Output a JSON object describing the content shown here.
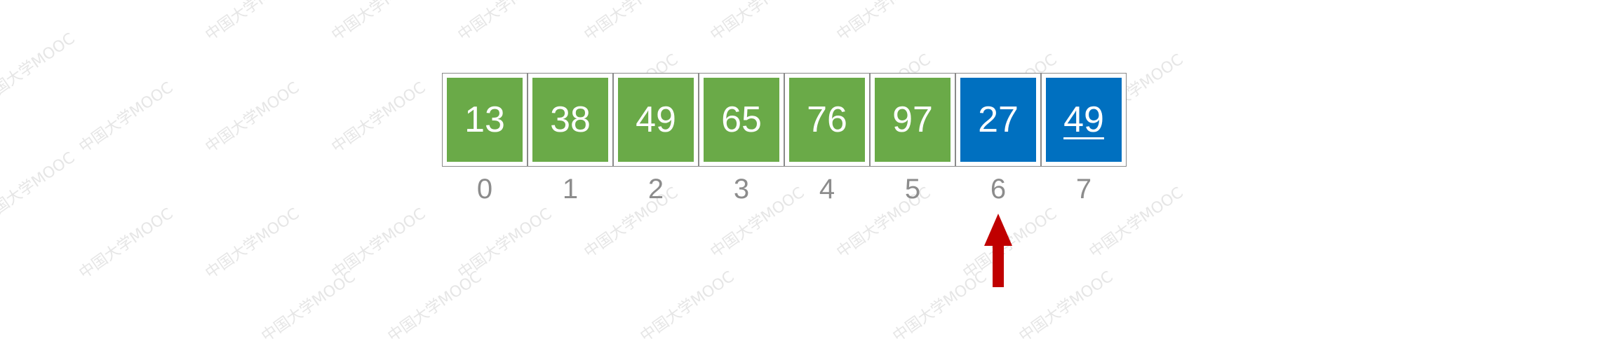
{
  "watermark_text": "中国大学MOOC",
  "array": {
    "cells": [
      {
        "value": "13",
        "state": "sorted",
        "underlined": false
      },
      {
        "value": "38",
        "state": "sorted",
        "underlined": false
      },
      {
        "value": "49",
        "state": "sorted",
        "underlined": false
      },
      {
        "value": "65",
        "state": "sorted",
        "underlined": false
      },
      {
        "value": "76",
        "state": "sorted",
        "underlined": false
      },
      {
        "value": "97",
        "state": "sorted",
        "underlined": false
      },
      {
        "value": "27",
        "state": "unsorted",
        "underlined": false
      },
      {
        "value": "49",
        "state": "unsorted",
        "underlined": true
      }
    ],
    "indices": [
      "0",
      "1",
      "2",
      "3",
      "4",
      "5",
      "6",
      "7"
    ]
  },
  "pointer": {
    "index": 6,
    "color": "#c00000",
    "icon": "up-arrow-icon"
  },
  "colors": {
    "sorted": "#6aaa48",
    "unsorted": "#0070c0",
    "index_text": "#8c8c8c"
  }
}
